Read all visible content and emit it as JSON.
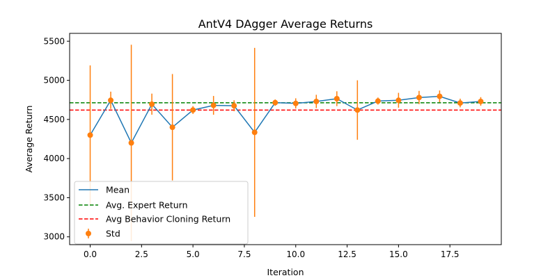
{
  "chart_data": {
    "type": "line",
    "title": "AntV4 DAgger Average Returns",
    "xlabel": "Iteration",
    "ylabel": "Average Return",
    "xlim": [
      -1.0,
      20.0
    ],
    "ylim": [
      2900,
      5600
    ],
    "xticks": [
      0.0,
      2.5,
      5.0,
      7.5,
      10.0,
      12.5,
      15.0,
      17.5
    ],
    "xtick_labels": [
      "0.0",
      "2.5",
      "5.0",
      "7.5",
      "10.0",
      "12.5",
      "15.0",
      "17.5"
    ],
    "yticks": [
      3000,
      3500,
      4000,
      4500,
      5000,
      5500
    ],
    "ytick_labels": [
      "3000",
      "3500",
      "4000",
      "4500",
      "5000",
      "5500"
    ],
    "grid": false,
    "legend_position": "lower-left",
    "x": [
      0,
      1,
      2,
      3,
      4,
      5,
      6,
      7,
      8,
      9,
      10,
      11,
      12,
      13,
      14,
      15,
      16,
      17,
      18,
      19
    ],
    "series": [
      {
        "name": "Mean",
        "kind": "line",
        "color": "#1f77b4",
        "values": [
          4300,
          4745,
          4200,
          4695,
          4400,
          4620,
          4680,
          4675,
          4335,
          4715,
          4705,
          4730,
          4765,
          4620,
          4735,
          4745,
          4780,
          4795,
          4710,
          4730
        ]
      },
      {
        "name": "Std",
        "kind": "errorbar",
        "color": "#ff7f0e",
        "values": [
          4300,
          4745,
          4200,
          4695,
          4400,
          4620,
          4680,
          4675,
          4335,
          4715,
          4705,
          4730,
          4765,
          4620,
          4735,
          4745,
          4780,
          4795,
          4710,
          4730
        ],
        "std": [
          890,
          110,
          1255,
          135,
          680,
          50,
          120,
          70,
          1080,
          40,
          65,
          85,
          95,
          380,
          45,
          95,
          85,
          75,
          55,
          55
        ]
      }
    ],
    "reference_lines": [
      {
        "name": "Avg. Expert Return",
        "y": 4713,
        "color": "#008000",
        "style": "dashed"
      },
      {
        "name": "Avg Behavior Cloning Return",
        "y": 4620,
        "color": "#ff0000",
        "style": "dashed"
      }
    ]
  }
}
